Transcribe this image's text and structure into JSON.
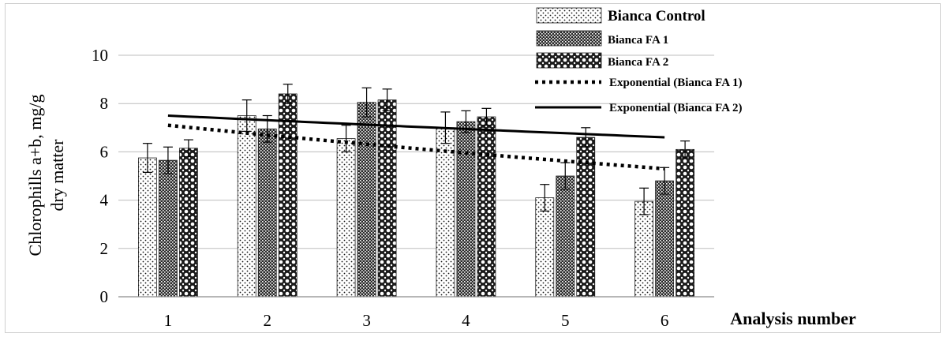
{
  "chart_data": {
    "type": "bar",
    "categories": [
      "1",
      "2",
      "3",
      "4",
      "5",
      "6"
    ],
    "ylabel": "Chlorophills a+b, mg/g dry matter",
    "xlabel": "Analysis number",
    "ylim": [
      0,
      10
    ],
    "yticks": [
      0,
      2,
      4,
      6,
      8,
      10
    ],
    "grid": "horizontal",
    "legend_position": "top-right",
    "series": [
      {
        "name": "Bianca Control",
        "pattern": "dots",
        "values": [
          5.75,
          7.5,
          6.55,
          7.0,
          4.1,
          3.95
        ],
        "errors": [
          0.6,
          0.65,
          0.55,
          0.65,
          0.55,
          0.55
        ]
      },
      {
        "name": "Bianca FA 1",
        "pattern": "crosshatch",
        "values": [
          5.65,
          6.95,
          8.05,
          7.25,
          5.0,
          4.8
        ],
        "errors": [
          0.55,
          0.55,
          0.6,
          0.45,
          0.55,
          0.55
        ]
      },
      {
        "name": "Bianca FA 2",
        "pattern": "circles",
        "values": [
          6.15,
          8.4,
          8.15,
          7.45,
          6.6,
          6.1
        ],
        "errors": [
          0.35,
          0.4,
          0.45,
          0.35,
          0.4,
          0.35
        ]
      }
    ],
    "trendlines": [
      {
        "name": "Exponential  (Bianca FA 1)",
        "style": "dotted",
        "start": 7.1,
        "end": 5.3
      },
      {
        "name": "Exponential  (Bianca FA 2)",
        "style": "solid",
        "start": 7.5,
        "end": 6.6
      }
    ]
  }
}
